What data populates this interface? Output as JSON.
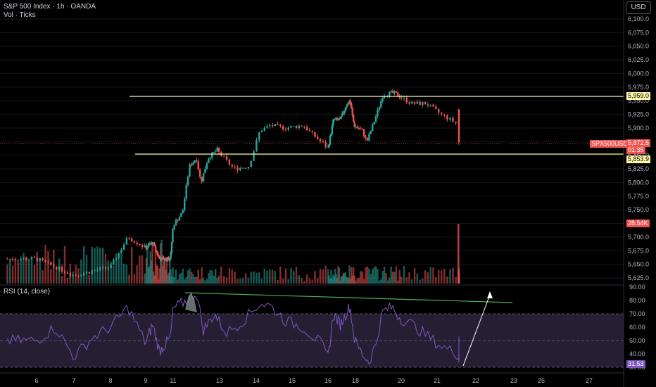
{
  "header": {
    "symbol_line": "S&P 500 Index · 1h · OANDA",
    "volume_line": "Vol · Ticks",
    "currency_button": "USD"
  },
  "price_axis": {
    "ticks": [
      "6,100.0",
      "6,075.0",
      "6,050.0",
      "6,025.0",
      "6,000.0",
      "5,975.0",
      "5,950.0",
      "5,925.0",
      "5,900.0",
      "5,875.0",
      "5,850.0",
      "5,825.0",
      "5,800.0",
      "5,775.0",
      "5,750.0",
      "5,725.0",
      "5,700.0",
      "5,675.0",
      "5,650.0",
      "5,625.0"
    ],
    "resistance_label": "5,959.0",
    "support_label": "5,853.9",
    "symbol_tag": "SPX500USD",
    "current_price": "5,872.5",
    "countdown": "01:35",
    "volume_tag": "28.54K"
  },
  "rsi": {
    "legend": "RSI (14, close)",
    "ticks": [
      "90.00",
      "80.00",
      "70.00",
      "60.00",
      "50.00",
      "40.00",
      "30.00"
    ],
    "current_value": "31.53"
  },
  "time_axis": {
    "labels": [
      "6",
      "7",
      "8",
      "9",
      "11",
      "13",
      "14",
      "15",
      "16",
      "18",
      "20",
      "21",
      "22",
      "23",
      "25",
      "27"
    ]
  },
  "colors": {
    "up": "#26a69a",
    "down": "#ef5350",
    "horizontal_line": "#fff9a8",
    "rsi_line": "#7e57c2",
    "rsi_band": "#2a2238",
    "trend_line": "#4caf50",
    "arrow": "#ffffff"
  },
  "chart_data": {
    "type": "candlestick",
    "price_range": [
      5615,
      6112
    ],
    "resistance_level": 5959.0,
    "support_level": 5853.9,
    "last_price": 5872.5,
    "price_path": [
      [
        6,
        5660
      ],
      [
        7,
        5630
      ],
      [
        8,
        5645
      ],
      [
        8.5,
        5700
      ],
      [
        9,
        5680
      ],
      [
        9.5,
        5690
      ],
      [
        10,
        5660
      ],
      [
        10.8,
        5660
      ],
      [
        11,
        5722
      ],
      [
        11.4,
        5745
      ],
      [
        11.7,
        5830
      ],
      [
        12,
        5845
      ],
      [
        12.2,
        5800
      ],
      [
        12.5,
        5845
      ],
      [
        12.9,
        5860
      ],
      [
        13.4,
        5825
      ],
      [
        13.8,
        5830
      ],
      [
        14.1,
        5895
      ],
      [
        14.4,
        5905
      ],
      [
        14.8,
        5900
      ],
      [
        15.3,
        5905
      ],
      [
        15.8,
        5875
      ],
      [
        16,
        5863
      ],
      [
        16.4,
        5915
      ],
      [
        16.9,
        5915
      ],
      [
        17.3,
        5940
      ],
      [
        17.6,
        5950
      ],
      [
        17.9,
        5905
      ],
      [
        18.3,
        5895
      ],
      [
        18.5,
        5875
      ],
      [
        18.8,
        5910
      ],
      [
        19.2,
        5960
      ],
      [
        19.6,
        5965
      ],
      [
        19.9,
        5960
      ],
      [
        20.3,
        5945
      ],
      [
        20.7,
        5945
      ],
      [
        21.1,
        5925
      ],
      [
        21.6,
        5905
      ],
      [
        21.9,
        5935
      ],
      [
        22.05,
        5925
      ],
      [
        22.15,
        5872
      ]
    ],
    "rsi_range": [
      24,
      90
    ],
    "rsi_levels": [
      70,
      50,
      30
    ],
    "rsi_path": [
      [
        6,
        50
      ],
      [
        6.5,
        60
      ],
      [
        7,
        38
      ],
      [
        7.5,
        52
      ],
      [
        8,
        60
      ],
      [
        8.5,
        75
      ],
      [
        9,
        48
      ],
      [
        9.5,
        62
      ],
      [
        10,
        42
      ],
      [
        10.8,
        52
      ],
      [
        11,
        74
      ],
      [
        11.6,
        80
      ],
      [
        12,
        86
      ],
      [
        12.3,
        58
      ],
      [
        12.8,
        70
      ],
      [
        13.2,
        56
      ],
      [
        13.6,
        64
      ],
      [
        14.1,
        78
      ],
      [
        14.4,
        76
      ],
      [
        14.8,
        65
      ],
      [
        15.3,
        60
      ],
      [
        15.8,
        48
      ],
      [
        16,
        37
      ],
      [
        16.4,
        70
      ],
      [
        16.9,
        62
      ],
      [
        17.3,
        70
      ],
      [
        17.6,
        76
      ],
      [
        17.9,
        52
      ],
      [
        18.3,
        40
      ],
      [
        18.6,
        34
      ],
      [
        18.9,
        48
      ],
      [
        19.2,
        72
      ],
      [
        19.6,
        75
      ],
      [
        19.9,
        68
      ],
      [
        20.3,
        62
      ],
      [
        20.7,
        54
      ],
      [
        21.1,
        46
      ],
      [
        21.6,
        39
      ],
      [
        21.9,
        58
      ],
      [
        22.1,
        31.53
      ]
    ]
  }
}
